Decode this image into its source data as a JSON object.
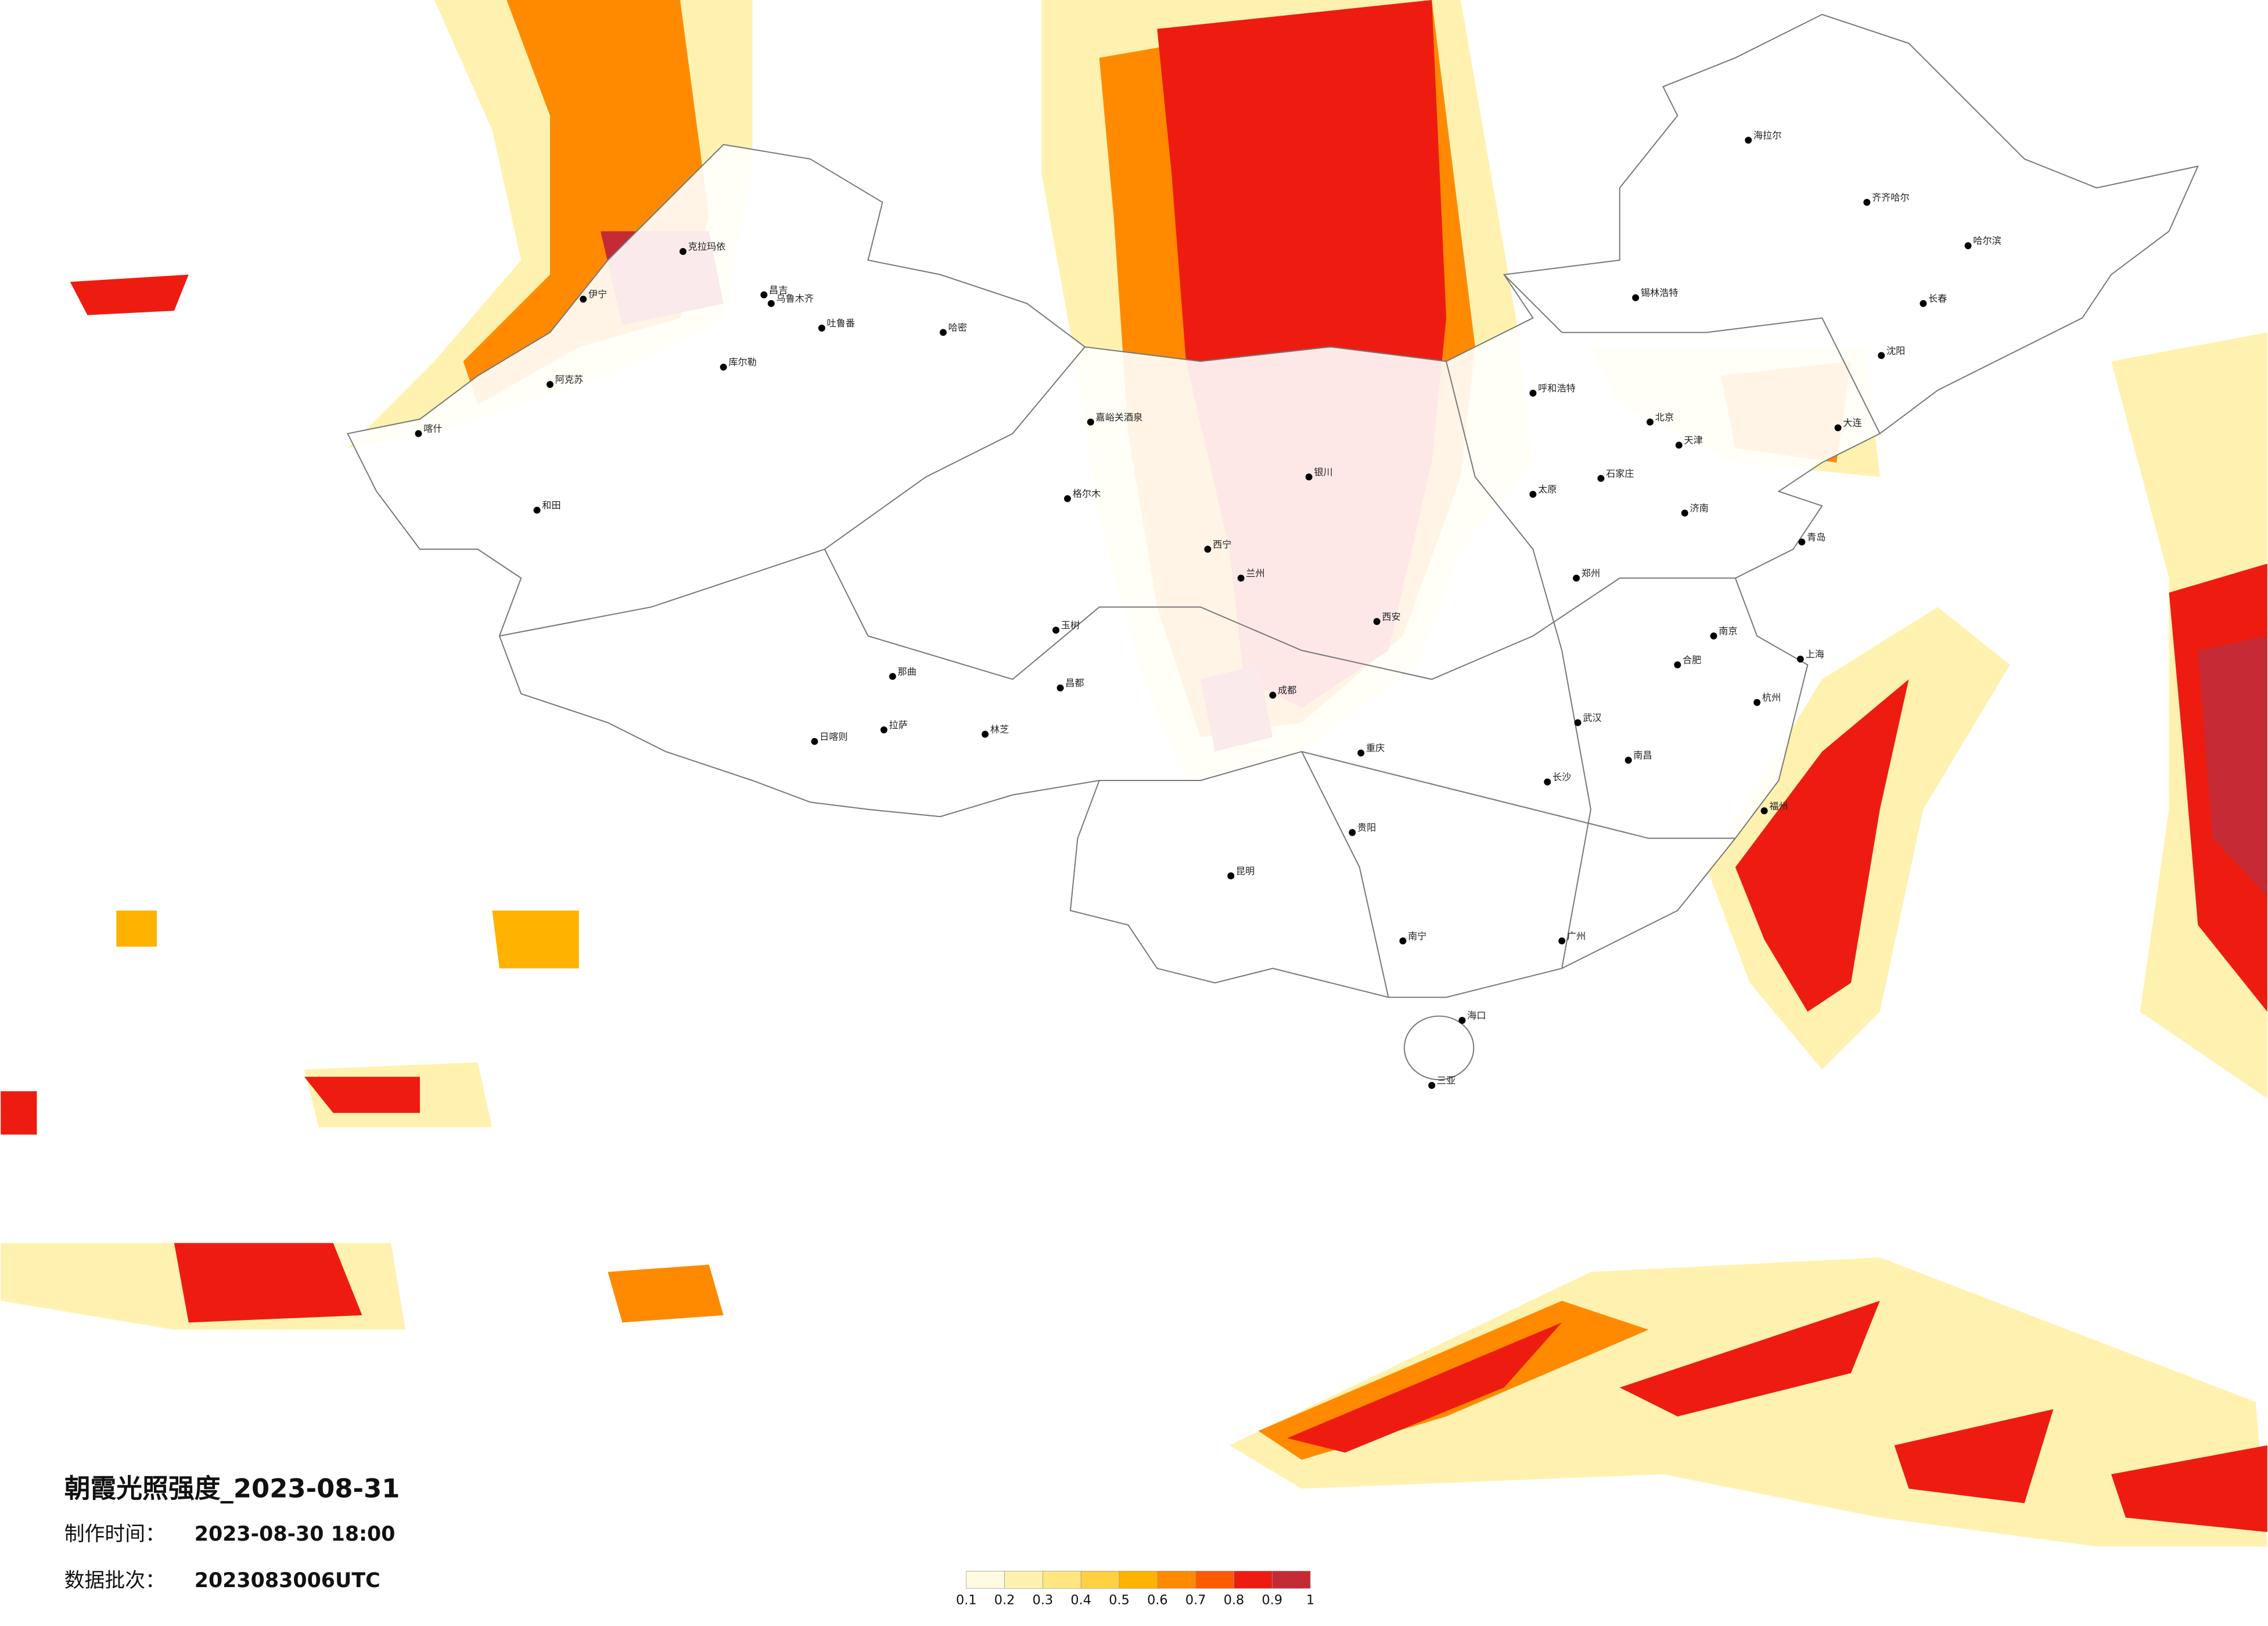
{
  "map": {
    "title": "朝霞光照强度_2023-08-31",
    "made_label": "制作时间：",
    "made_time": "2023-08-30 18:00",
    "batch_label": "数据批次：",
    "batch": "2023083006UTC",
    "cities": [
      "克拉玛依",
      "昌吉",
      "乌鲁木齐",
      "吐鲁番",
      "哈密",
      "库尔勒",
      "伊宁",
      "阿克苏",
      "喀什",
      "和田",
      "格尔木",
      "嘉峪关酒泉",
      "拉萨",
      "日喀则",
      "林芝",
      "那曲",
      "昌都",
      "玉树",
      "西宁",
      "兰州",
      "银川",
      "呼和浩特",
      "北京",
      "天津",
      "石家庄",
      "太原",
      "西安",
      "郑州",
      "济南",
      "青岛",
      "南京",
      "上海",
      "杭州",
      "合肥",
      "武汉",
      "长沙",
      "南昌",
      "福州",
      "广州",
      "南宁",
      "海口",
      "三亚",
      "贵阳",
      "昆明",
      "成都",
      "重庆",
      "哈尔滨",
      "长春",
      "沈阳",
      "大连",
      "海拉尔",
      "齐齐哈尔",
      "锡林浩特"
    ]
  },
  "legend": {
    "colors": [
      "#fffbe0",
      "#fff2b0",
      "#ffe680",
      "#ffd040",
      "#ffb300",
      "#ff8a00",
      "#ff5a00",
      "#ee1c10",
      "#c62a35"
    ],
    "ticks": [
      0.1,
      0.2,
      0.3,
      0.4,
      0.5,
      0.6,
      0.7,
      0.8,
      0.9,
      1
    ]
  }
}
